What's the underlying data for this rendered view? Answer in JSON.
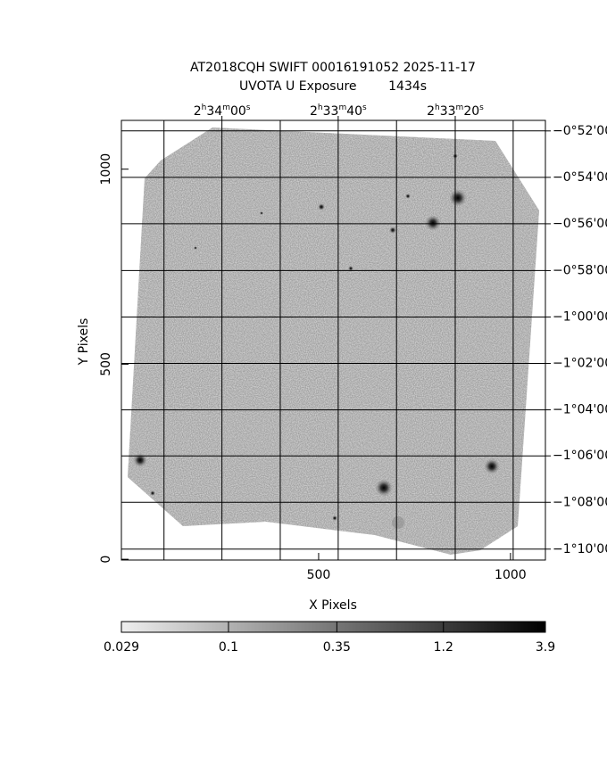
{
  "chart_data": {
    "type": "image",
    "title": "AT2018CQH SWIFT 00016191052 2025-11-17",
    "subtitle": "UVOTA U Exposure        1434s",
    "xlabel": "X Pixels",
    "ylabel": "Y Pixels",
    "xlim": [
      -14,
      1091
    ],
    "ylim": [
      -2,
      1125
    ],
    "xticks": [
      500,
      1000
    ],
    "yticks": [
      0,
      500,
      1000
    ],
    "ra_grid": [
      97,
      248,
      400,
      551,
      703,
      856,
      1007
    ],
    "ra_ticks": [
      {
        "value": 248,
        "label": "2h34m00s"
      },
      {
        "value": 551,
        "label": "2h33m40s"
      },
      {
        "value": 856,
        "label": "2h33m20s"
      }
    ],
    "dec_ticks": [
      {
        "value": 1098,
        "label": "−0°52'00\""
      },
      {
        "value": 979,
        "label": "−0°54'00\""
      },
      {
        "value": 860,
        "label": "−0°56'00\""
      },
      {
        "value": 740,
        "label": "−0°58'00\""
      },
      {
        "value": 621,
        "label": "−1°00'00\""
      },
      {
        "value": 502,
        "label": "−1°02'00\""
      },
      {
        "value": 383,
        "label": "−1°04'00\""
      },
      {
        "value": 265,
        "label": "−1°06'00\""
      },
      {
        "value": 146,
        "label": "−1°08'00\""
      },
      {
        "value": 26,
        "label": "−1°10'00\""
      }
    ],
    "colorbar": {
      "lim": [
        0.029,
        3.9
      ],
      "log": true,
      "ticks": [
        0.029,
        0.1,
        0.35,
        1.2,
        3.9
      ]
    },
    "grid": true
  }
}
